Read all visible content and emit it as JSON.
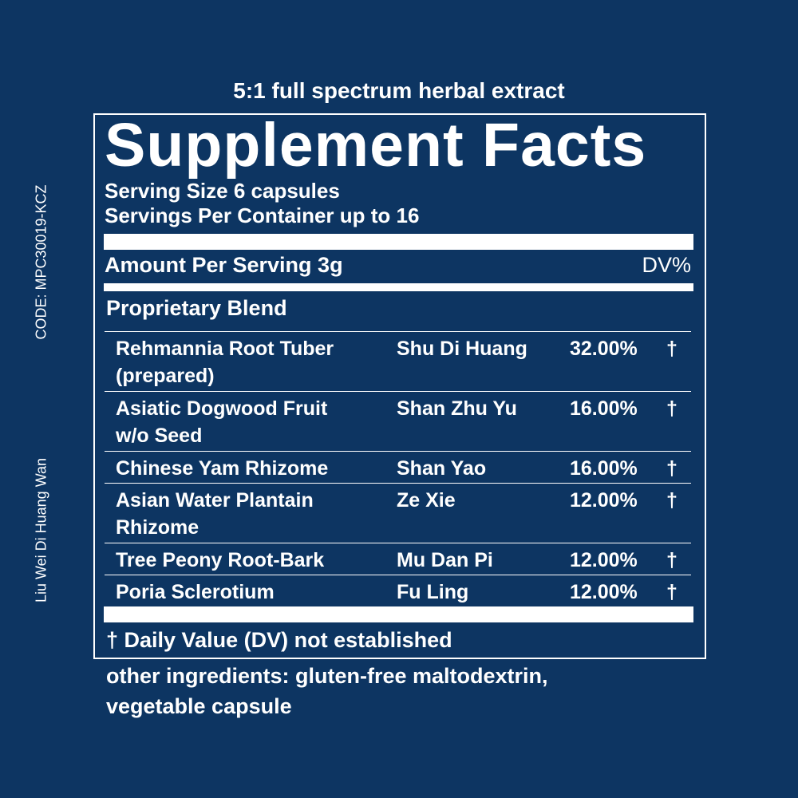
{
  "header": {
    "subtitle": "5:1 full spectrum herbal extract",
    "title": "Supplement Facts"
  },
  "serving": {
    "size": "Serving Size 6 capsules",
    "per_container": "Servings Per Container up to 16"
  },
  "amount": {
    "label": "Amount Per Serving 3g",
    "dv": "DV%"
  },
  "blend": {
    "title": "Proprietary Blend",
    "rows": [
      {
        "name": [
          "Rehmannia Root Tuber",
          "(prepared)"
        ],
        "pinyin": "Shu Di Huang",
        "percent": "32.00%",
        "dv": "†"
      },
      {
        "name": [
          "Asiatic Dogwood Fruit",
          "w/o Seed"
        ],
        "pinyin": "Shan Zhu Yu",
        "percent": "16.00%",
        "dv": "†"
      },
      {
        "name": [
          "Chinese Yam Rhizome"
        ],
        "pinyin": "Shan Yao",
        "percent": "16.00%",
        "dv": "†"
      },
      {
        "name": [
          "Asian Water Plantain",
          "Rhizome"
        ],
        "pinyin": "Ze Xie",
        "percent": "12.00%",
        "dv": "†"
      },
      {
        "name": [
          "Tree Peony Root-Bark"
        ],
        "pinyin": "Mu Dan Pi",
        "percent": "12.00%",
        "dv": "†"
      },
      {
        "name": [
          "Poria Sclerotium"
        ],
        "pinyin": "Fu Ling",
        "percent": "12.00%",
        "dv": "†"
      }
    ]
  },
  "footnote": "† Daily Value (DV) not established",
  "other_ingredients": [
    "other ingredients: gluten-free maltodextrin,",
    "vegetable capsule"
  ],
  "side": {
    "code": "CODE: MPC30019-KCZ",
    "product": "Liu Wei Di Huang Wan"
  }
}
